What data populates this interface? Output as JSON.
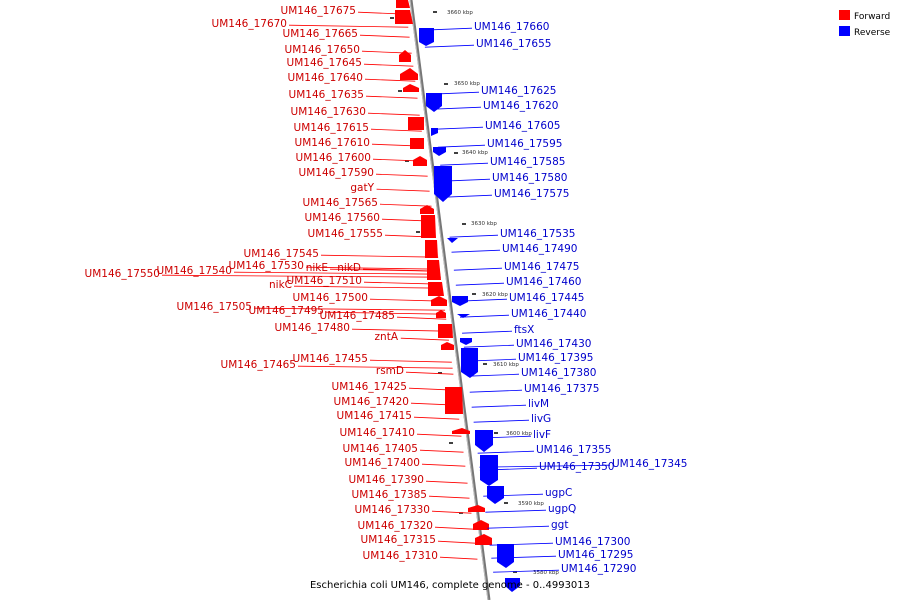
{
  "caption": "Escherichia coli UM146, complete genome - 0..4993013",
  "legend": [
    {
      "label": "Forward",
      "color": "#ff0000"
    },
    {
      "label": "Reverse",
      "color": "#0000ff"
    }
  ],
  "scale_marks": [
    "3660 kbp",
    "3650 kbp",
    "3640 kbp",
    "3630 kbp",
    "3620 kbp",
    "3610 kbp",
    "3600 kbp",
    "3590 kbp",
    "3580 kbp"
  ],
  "forward_labels": [
    "UM146_17675",
    "UM146_17670",
    "UM146_17665",
    "UM146_17650",
    "UM146_17645",
    "UM146_17640",
    "UM146_17635",
    "UM146_17630",
    "UM146_17615",
    "UM146_17610",
    "UM146_17600",
    "UM146_17590",
    "gatY",
    "UM146_17565",
    "UM146_17560",
    "UM146_17555",
    "UM146_17545",
    "UM146_17530",
    "nikE",
    "nikD",
    "UM146_17550",
    "UM146_17540",
    "UM146_17510",
    "nikC",
    "UM146_17500",
    "UM146_17505",
    "UM146_17495",
    "UM146_17485",
    "UM146_17480",
    "zntA",
    "UM146_17465",
    "UM146_17455",
    "rsmD",
    "UM146_17425",
    "UM146_17420",
    "UM146_17415",
    "UM146_17410",
    "UM146_17405",
    "UM146_17400",
    "UM146_17390",
    "UM146_17385",
    "UM146_17330",
    "UM146_17320",
    "UM146_17315",
    "UM146_17310"
  ],
  "reverse_labels": [
    "UM146_17660",
    "UM146_17655",
    "UM146_17625",
    "UM146_17620",
    "UM146_17605",
    "UM146_17595",
    "UM146_17585",
    "UM146_17580",
    "UM146_17575",
    "UM146_17535",
    "UM146_17490",
    "UM146_17475",
    "UM146_17460",
    "UM146_17445",
    "UM146_17440",
    "ftsX",
    "UM146_17430",
    "UM146_17395",
    "UM146_17380",
    "UM146_17375",
    "livM",
    "livG",
    "livF",
    "UM146_17355",
    "UM146_17350",
    "UM146_17345",
    "ugpC",
    "ugpQ",
    "ggt",
    "UM146_17300",
    "UM146_17295",
    "UM146_17290"
  ]
}
